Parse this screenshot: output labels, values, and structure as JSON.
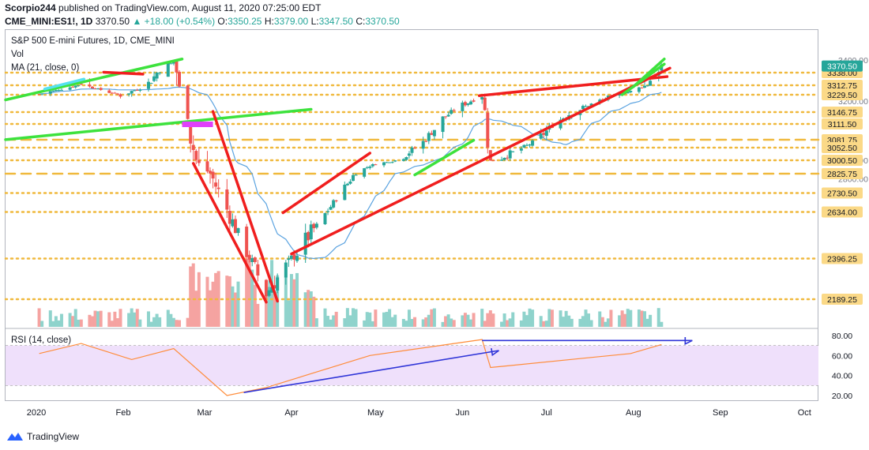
{
  "header": {
    "publisher": "Scorpio244",
    "published_text": "published on TradingView.com, August 11, 2020 07:25:00 EDT",
    "symbol": "CME_MINI:ES1!, 1D",
    "last": "3370.50",
    "change": "+18.00 (+0.54%)",
    "o_label": "O:",
    "o_value": "3350.25",
    "h_label": "H:",
    "h_value": "3379.00",
    "l_label": "L:",
    "l_value": "3347.50",
    "c_label": "C:",
    "c_value": "3370.50"
  },
  "legend": {
    "title": "S&P 500 E-mini Futures, 1D, CME_MINI",
    "vol": "Vol",
    "ma": "MA (21, close, 0)",
    "rsi": "RSI (14, close)"
  },
  "footer": {
    "brand": "TradingView"
  },
  "colors": {
    "up": "#26a69a",
    "down": "#ef5350",
    "vol_up": "#8fd3cc",
    "vol_down": "#f5a3a1",
    "ma": "#5ba3e0",
    "level": "#f0b93d",
    "price_tag": "#fbd987",
    "trend_red": "#f01e1e",
    "trend_green": "#3de23d",
    "cyan": "#55e1f0",
    "magenta": "#e040fb",
    "rsi_line": "#ff8c3a",
    "rsi_band": "#efe0fb",
    "rsi_arrow": "#2f35d8"
  },
  "chart_data": [
    {
      "type": "candlestick",
      "title": "S&P 500 E-mini Futures, 1D, CME_MINI",
      "x_labels": [
        "2020",
        "Feb",
        "Mar",
        "Apr",
        "May",
        "Jun",
        "Jul",
        "Aug",
        "Sep",
        "Oct"
      ],
      "y_ticks": [
        2800.0,
        3000.0,
        3200.0,
        3400.0
      ],
      "y_range": [
        2150,
        3440
      ],
      "levels": [
        {
          "value": 3338.0,
          "label": "3338.00",
          "style": "dotted"
        },
        {
          "value": 3312.75,
          "label": "3312.75",
          "style": "dotted"
        },
        {
          "value": 3229.5,
          "label": "3229.50",
          "style": "dotted"
        },
        {
          "value": 3146.75,
          "label": "3146.75",
          "style": "dotted"
        },
        {
          "value": 3111.5,
          "label": "3111.50",
          "style": "dotted"
        },
        {
          "value": 3081.75,
          "label": "3081.75",
          "style": "dashed"
        },
        {
          "value": 3052.5,
          "label": "3052.50",
          "style": "dotted"
        },
        {
          "value": 3000.5,
          "label": "3000.50",
          "style": "dotted"
        },
        {
          "value": 2825.75,
          "label": "2825.75",
          "style": "dashed"
        },
        {
          "value": 2730.5,
          "label": "2730.50",
          "style": "dotted"
        },
        {
          "value": 2634.0,
          "label": "2634.00",
          "style": "dotted"
        },
        {
          "value": 2396.25,
          "label": "2396.25",
          "style": "dotted"
        },
        {
          "value": 2189.25,
          "label": "2189.25",
          "style": "dotted"
        }
      ],
      "last_price": {
        "value": 3370.5,
        "label": "3370.50"
      },
      "closes_sample": [
        {
          "date": "2020-01-02",
          "close": 3235
        },
        {
          "date": "2020-01-17",
          "close": 3320
        },
        {
          "date": "2020-01-31",
          "close": 3226
        },
        {
          "date": "2020-02-19",
          "close": 3390
        },
        {
          "date": "2020-02-28",
          "close": 2950
        },
        {
          "date": "2020-03-23",
          "close": 2220
        },
        {
          "date": "2020-04-29",
          "close": 2930
        },
        {
          "date": "2020-06-08",
          "close": 3230
        },
        {
          "date": "2020-06-11",
          "close": 2990
        },
        {
          "date": "2020-07-31",
          "close": 3260
        },
        {
          "date": "2020-08-10",
          "close": 3352
        },
        {
          "date": "2020-08-11",
          "close": 3370.5
        }
      ]
    },
    {
      "type": "line",
      "name": "RSI (14, close)",
      "y_ticks": [
        20.0,
        40.0,
        60.0,
        80.0
      ],
      "band": [
        30,
        70
      ],
      "points": [
        {
          "date": "2020-01-02",
          "y": 62
        },
        {
          "date": "2020-01-17",
          "y": 72
        },
        {
          "date": "2020-02-04",
          "y": 56
        },
        {
          "date": "2020-02-19",
          "y": 67
        },
        {
          "date": "2020-03-09",
          "y": 20
        },
        {
          "date": "2020-03-23",
          "y": 28
        },
        {
          "date": "2020-04-29",
          "y": 60
        },
        {
          "date": "2020-06-08",
          "y": 76
        },
        {
          "date": "2020-06-11",
          "y": 48
        },
        {
          "date": "2020-07-31",
          "y": 62
        },
        {
          "date": "2020-08-11",
          "y": 71
        }
      ]
    }
  ]
}
